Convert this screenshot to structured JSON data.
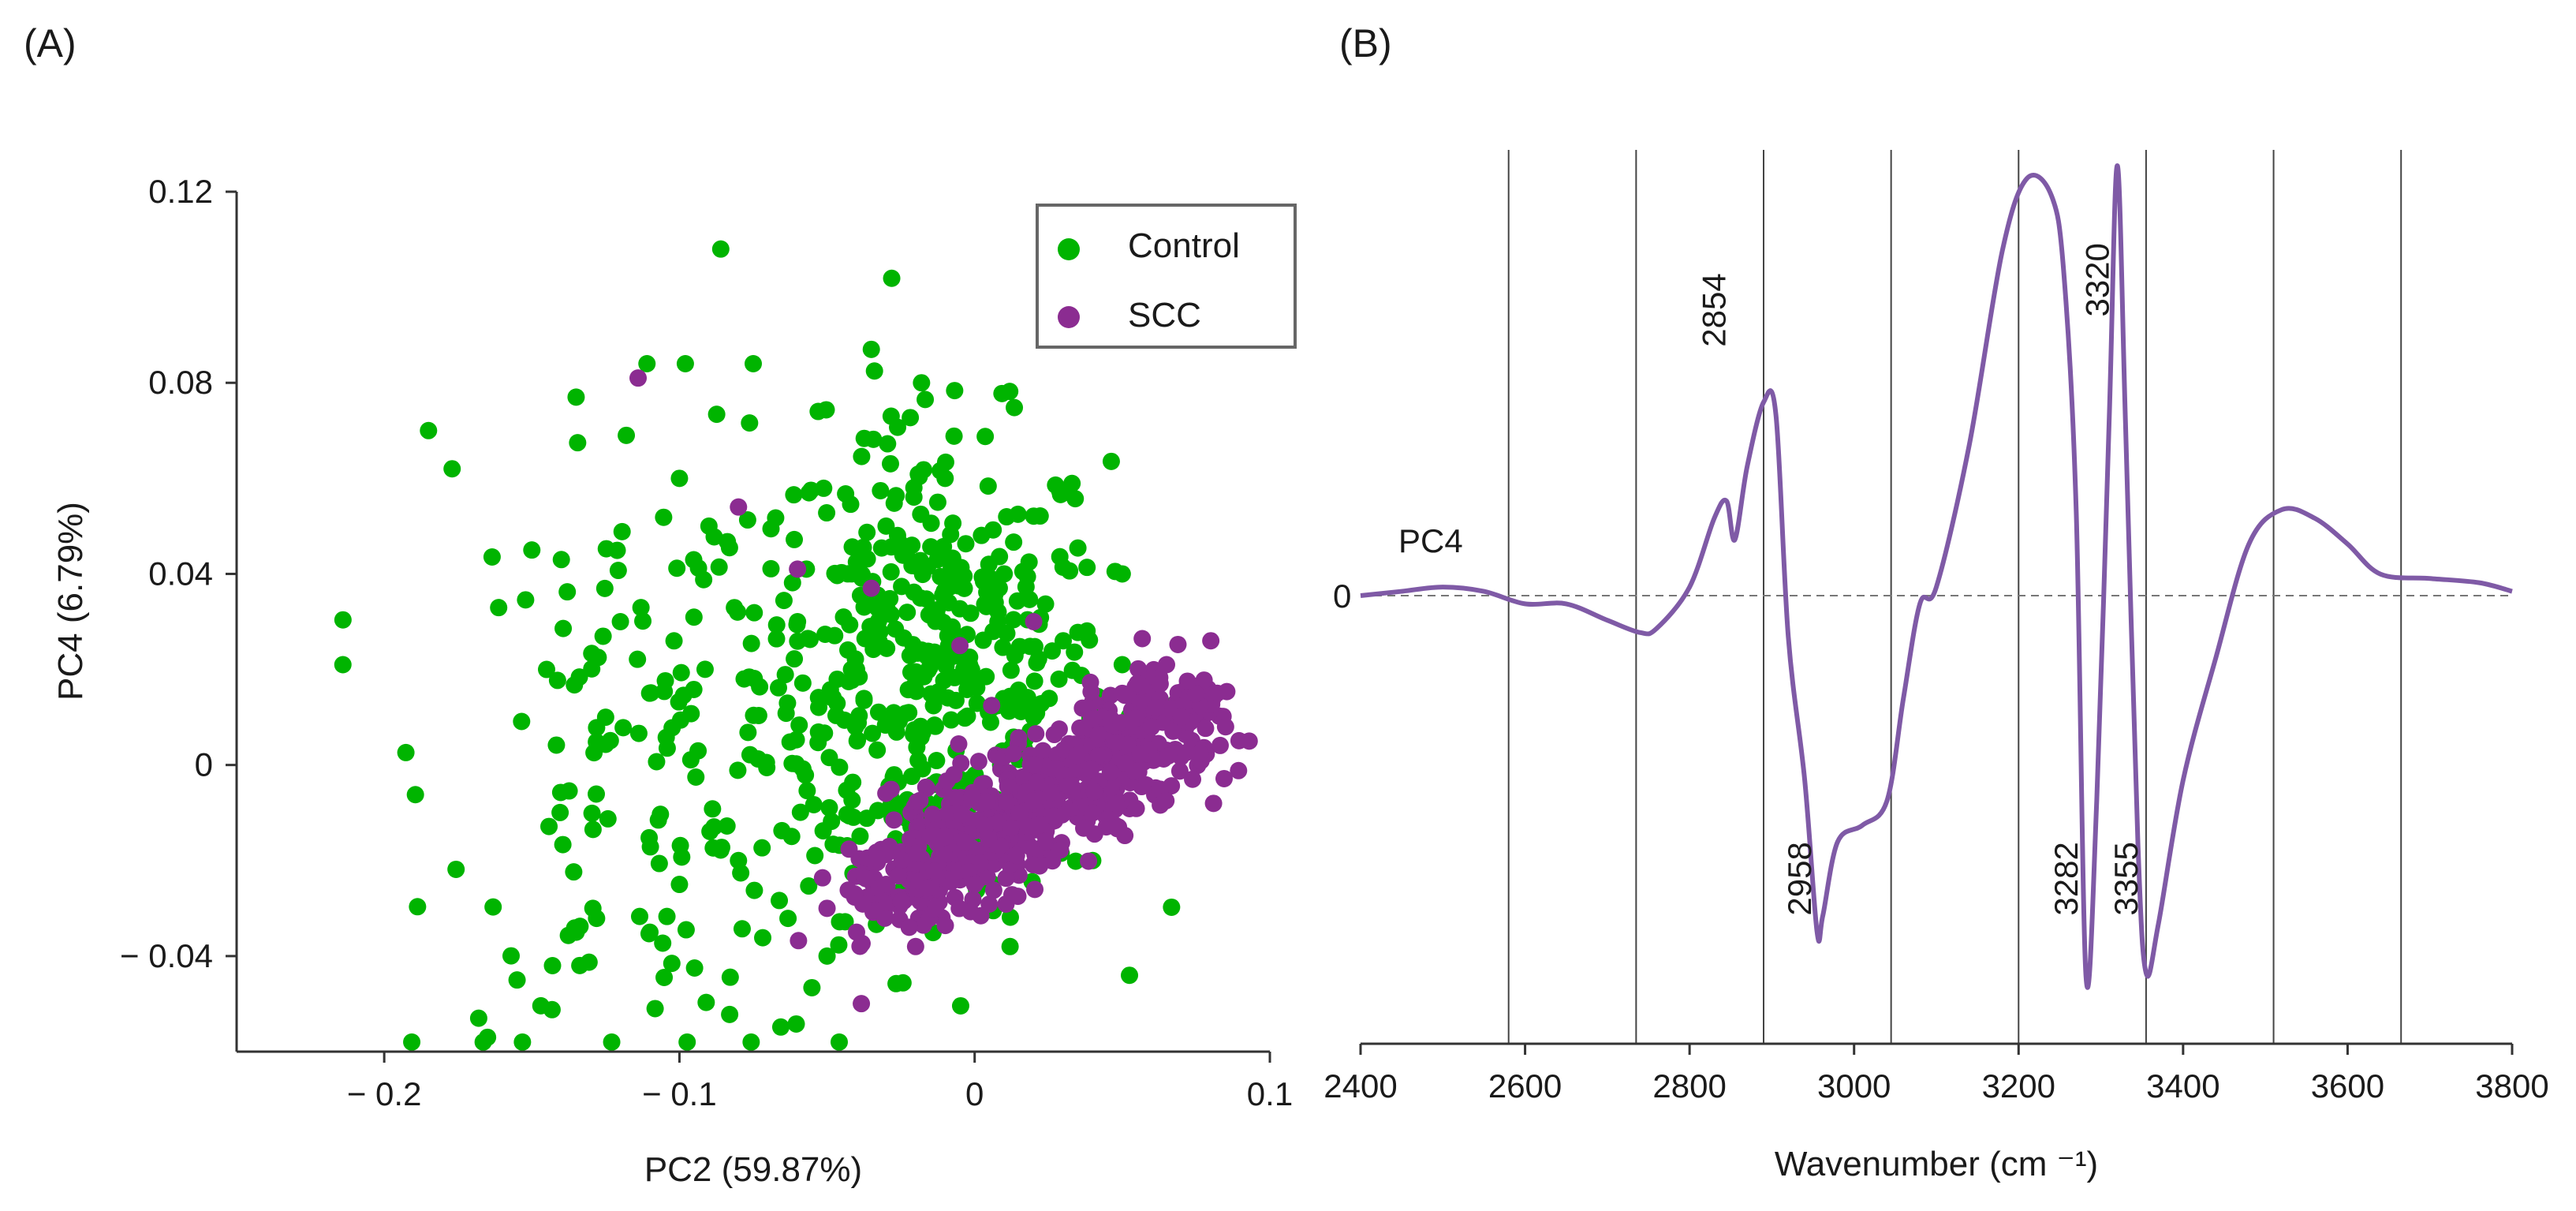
{
  "chart_data": [
    {
      "panel": "(A)",
      "type": "scatter",
      "xlabel": "PC2 (59.87%)",
      "ylabel": "PC4 (6.79%)",
      "xlim": [
        -0.25,
        0.1
      ],
      "ylim": [
        -0.06,
        0.12
      ],
      "xticks": [
        -0.2,
        -0.1,
        0,
        0.1
      ],
      "xtick_labels": [
        "− 0.2",
        "− 0.1",
        "0",
        "0.1"
      ],
      "yticks": [
        -0.04,
        0,
        0.04,
        0.08,
        0.12
      ],
      "ytick_labels": [
        "− 0.04",
        "0",
        "0.04",
        "0.08",
        "0.12"
      ],
      "legend": "top-right",
      "series": [
        {
          "name": "Control",
          "color": "#00b400",
          "cluster_center": [
            -0.015,
            0.02
          ],
          "cluster_spread": [
            0.03,
            0.025
          ],
          "sample_points": [
            [
              -0.214,
              0.021
            ],
            [
              -0.185,
              0.07
            ],
            [
              -0.177,
              0.062
            ],
            [
              -0.165,
              -0.057
            ],
            [
              -0.168,
              -0.053
            ],
            [
              -0.155,
              -0.045
            ],
            [
              -0.143,
              -0.042
            ],
            [
              -0.135,
              -0.035
            ],
            [
              -0.14,
              0.043
            ],
            [
              -0.135,
              0.077
            ],
            [
              -0.118,
              0.069
            ],
            [
              -0.111,
              0.084
            ],
            [
              -0.098,
              0.084
            ],
            [
              -0.086,
              0.108
            ],
            [
              -0.075,
              0.084
            ],
            [
              -0.053,
              0.074
            ],
            [
              -0.018,
              0.08
            ],
            [
              -0.035,
              0.087
            ],
            [
              0.012,
              -0.038
            ],
            [
              0.05,
              0.04
            ],
            [
              0.03,
              0.026
            ],
            [
              0.05,
              0.021
            ],
            [
              -0.1,
              0.06
            ],
            [
              -0.09,
              0.05
            ],
            [
              -0.12,
              0.03
            ],
            [
              -0.06,
              0.03
            ],
            [
              -0.08,
              -0.02
            ],
            [
              -0.1,
              -0.025
            ],
            [
              -0.11,
              -0.035
            ],
            [
              -0.03,
              0.05
            ],
            [
              -0.01,
              0.06
            ],
            [
              0.01,
              0.04
            ],
            [
              -0.04,
              0.02
            ],
            [
              0.02,
              0.01
            ],
            [
              -0.02,
              -0.01
            ],
            [
              0.04,
              -0.02
            ],
            [
              -0.05,
              -0.04
            ],
            [
              -0.125,
              0.01
            ],
            [
              -0.145,
              0.02
            ],
            [
              -0.15,
              0.045
            ]
          ]
        },
        {
          "name": "SCC",
          "color": "#8b2c91",
          "cluster_center": [
            0.03,
            0.0
          ],
          "cluster_spread": [
            0.03,
            0.015
          ],
          "sample_points": [
            [
              -0.114,
              0.081
            ],
            [
              -0.06,
              0.041
            ],
            [
              -0.035,
              0.037
            ],
            [
              -0.08,
              0.054
            ],
            [
              -0.005,
              0.025
            ],
            [
              0.08,
              0.026
            ],
            [
              0.093,
              0.005
            ],
            [
              0.085,
              0.008
            ],
            [
              0.065,
              0.021
            ],
            [
              0.02,
              0.03
            ],
            [
              -0.04,
              -0.035
            ],
            [
              -0.02,
              -0.038
            ],
            [
              -0.05,
              -0.03
            ],
            [
              -0.03,
              -0.025
            ],
            [
              0.0,
              -0.025
            ],
            [
              0.04,
              -0.01
            ],
            [
              0.07,
              0.01
            ],
            [
              0.02,
              0.0
            ],
            [
              0.05,
              0.015
            ],
            [
              -0.01,
              -0.015
            ]
          ]
        }
      ]
    },
    {
      "panel": "(B)",
      "type": "line",
      "title": "",
      "series_label": "PC4",
      "xlabel": "Wavenumber (cm ⁻¹)",
      "ylabel": "",
      "zero_label": "0",
      "xlim": [
        2400,
        3800
      ],
      "ylim": [
        -1.0,
        1.0
      ],
      "xticks": [
        2400,
        2600,
        2800,
        3000,
        3200,
        3400,
        3600,
        3800
      ],
      "xtick_labels": [
        "2400",
        "2600",
        "2800",
        "3000",
        "3200",
        "3400",
        "3600",
        "3800"
      ],
      "vertical_gridlines": [
        2580,
        2735,
        2890,
        3045,
        3200,
        3355,
        3510,
        3665
      ],
      "line_color": "#7f5aa6",
      "annotations": [
        {
          "text": "2854",
          "x": 2854,
          "y": 0.75,
          "rotation": -90
        },
        {
          "text": "3320",
          "x": 3320,
          "y": 0.82,
          "rotation": -90
        },
        {
          "text": "2958",
          "x": 2958,
          "y": -0.78,
          "rotation": -90
        },
        {
          "text": "3282",
          "x": 3282,
          "y": -0.78,
          "rotation": -90
        },
        {
          "text": "3355",
          "x": 3355,
          "y": -0.78,
          "rotation": -90
        }
      ],
      "x": [
        2400,
        2450,
        2500,
        2550,
        2600,
        2650,
        2700,
        2740,
        2760,
        2800,
        2830,
        2845,
        2855,
        2870,
        2890,
        2905,
        2920,
        2940,
        2955,
        2962,
        2980,
        3010,
        3040,
        3060,
        3080,
        3100,
        3140,
        3180,
        3210,
        3240,
        3255,
        3270,
        3282,
        3295,
        3310,
        3320,
        3330,
        3345,
        3355,
        3370,
        3400,
        3440,
        3480,
        3520,
        3560,
        3600,
        3640,
        3700,
        3760,
        3800
      ],
      "y": [
        0.0,
        0.01,
        0.02,
        0.01,
        -0.02,
        -0.02,
        -0.06,
        -0.09,
        -0.08,
        0.02,
        0.18,
        0.22,
        0.13,
        0.3,
        0.45,
        0.42,
        -0.1,
        -0.45,
        -0.82,
        -0.78,
        -0.6,
        -0.56,
        -0.5,
        -0.25,
        -0.02,
        0.02,
        0.35,
        0.8,
        0.97,
        0.93,
        0.75,
        0.2,
        -0.93,
        -0.5,
        0.4,
        1.0,
        0.4,
        -0.6,
        -0.92,
        -0.8,
        -0.45,
        -0.15,
        0.12,
        0.2,
        0.18,
        0.12,
        0.05,
        0.04,
        0.03,
        0.01
      ]
    }
  ]
}
